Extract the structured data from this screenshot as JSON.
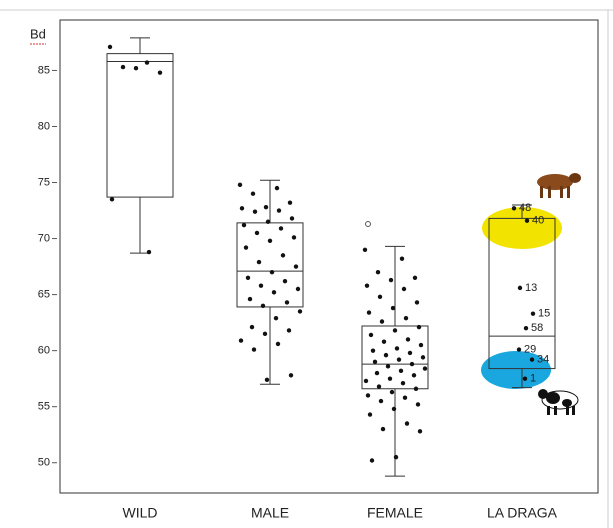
{
  "chart_data": {
    "type": "box",
    "y_label": "Bd",
    "categories": [
      "WILD",
      "MALE",
      "FEMALE",
      "LA DRAGA"
    ],
    "ylim": [
      47.3,
      89.5
    ],
    "yticks": [
      50,
      55,
      60,
      65,
      70,
      75,
      80,
      85
    ],
    "boxes": [
      {
        "min": 68.7,
        "q1": 73.7,
        "median": 85.8,
        "q3": 86.5,
        "max": 87.9
      },
      {
        "min": 57.0,
        "q1": 63.9,
        "median": 67.1,
        "q3": 71.4,
        "max": 75.2
      },
      {
        "min": 48.8,
        "q1": 56.6,
        "median": 58.8,
        "q3": 62.2,
        "max": 69.3
      },
      {
        "min": 56.7,
        "q1": 58.4,
        "median": 61.3,
        "q3": 71.8,
        "max": 73.0
      }
    ],
    "points": [
      [
        87.1,
        85.7,
        85.3,
        84.8,
        85.2,
        73.5,
        68.8
      ],
      [
        74.8,
        74.5,
        74.0,
        73.2,
        72.8,
        72.7,
        72.5,
        72.4,
        71.8,
        71.5,
        71.2,
        70.9,
        70.5,
        70.1,
        69.8,
        69.2,
        68.5,
        67.9,
        67.5,
        67.0,
        66.5,
        66.2,
        65.8,
        65.5,
        65.2,
        64.6,
        64.3,
        64.0,
        63.5,
        62.9,
        62.1,
        61.8,
        61.5,
        60.9,
        60.6,
        60.1,
        57.8,
        57.4
      ],
      [
        69.0,
        68.2,
        67.0,
        66.5,
        66.3,
        65.8,
        65.5,
        64.8,
        64.3,
        63.8,
        63.4,
        62.9,
        62.6,
        62.1,
        61.8,
        61.4,
        61.0,
        60.8,
        60.5,
        60.2,
        60.0,
        59.8,
        59.6,
        59.4,
        59.2,
        59.0,
        58.8,
        58.6,
        58.4,
        58.2,
        58.0,
        57.8,
        57.5,
        57.3,
        57.1,
        56.8,
        56.6,
        56.3,
        56.0,
        55.8,
        55.5,
        55.2,
        54.8,
        54.3,
        53.5,
        53.0,
        52.8,
        50.5,
        50.2
      ],
      [
        72.7,
        71.6,
        65.6,
        63.3,
        62.0,
        60.1,
        59.2,
        57.5
      ]
    ],
    "point_labels": [
      null,
      null,
      null,
      [
        "48",
        "40",
        "13",
        "15",
        "58",
        "29",
        "34",
        "1"
      ]
    ],
    "outliers": [
      [],
      [],
      [
        71.3
      ],
      []
    ]
  }
}
